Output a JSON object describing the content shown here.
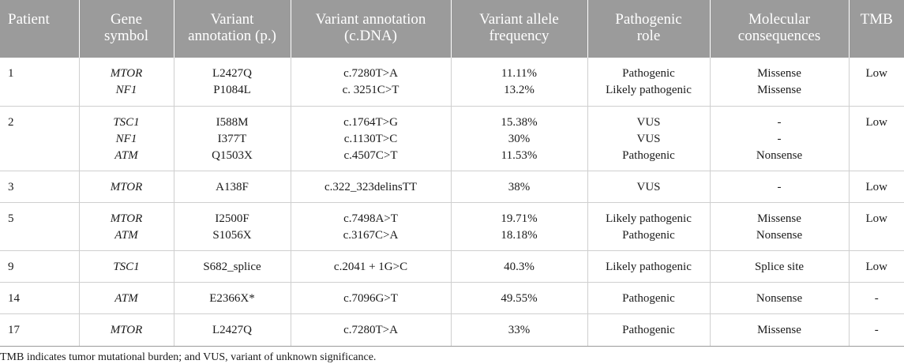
{
  "table": {
    "headers": [
      [
        "Patient"
      ],
      [
        "Gene",
        "symbol"
      ],
      [
        "Variant",
        "annotation (p.)"
      ],
      [
        "Variant annotation",
        "(c.DNA)"
      ],
      [
        "Variant allele",
        "frequency"
      ],
      [
        "Pathogenic",
        "role"
      ],
      [
        "Molecular",
        "consequences"
      ],
      [
        "TMB"
      ]
    ],
    "rows": [
      {
        "patient": "1",
        "genes": [
          "MTOR",
          "NF1"
        ],
        "protein": [
          "L2427Q",
          "P1084L"
        ],
        "cdna": [
          "c.7280T>A",
          "c. 3251C>T"
        ],
        "vaf": [
          "11.11%",
          "13.2%"
        ],
        "role": [
          "Pathogenic",
          "Likely pathogenic"
        ],
        "consequence": [
          "Missense",
          "Missense"
        ],
        "tmb": "Low"
      },
      {
        "patient": "2",
        "genes": [
          "TSC1",
          "NF1",
          "ATM"
        ],
        "protein": [
          "I588M",
          "I377T",
          "Q1503X"
        ],
        "cdna": [
          "c.1764T>G",
          "c.1130T>C",
          "c.4507C>T"
        ],
        "vaf": [
          "15.38%",
          "30%",
          "11.53%"
        ],
        "role": [
          "VUS",
          "VUS",
          "Pathogenic"
        ],
        "consequence": [
          "-",
          "-",
          "Nonsense"
        ],
        "tmb": "Low"
      },
      {
        "patient": "3",
        "genes": [
          "MTOR"
        ],
        "protein": [
          "A138F"
        ],
        "cdna": [
          "c.322_323delinsTT"
        ],
        "vaf": [
          "38%"
        ],
        "role": [
          "VUS"
        ],
        "consequence": [
          "-"
        ],
        "tmb": "Low"
      },
      {
        "patient": "5",
        "genes": [
          "MTOR",
          "ATM"
        ],
        "protein": [
          "I2500F",
          "S1056X"
        ],
        "cdna": [
          "c.7498A>T",
          "c.3167C>A"
        ],
        "vaf": [
          "19.71%",
          "18.18%"
        ],
        "role": [
          "Likely pathogenic",
          "Pathogenic"
        ],
        "consequence": [
          "Missense",
          "Nonsense"
        ],
        "tmb": "Low"
      },
      {
        "patient": "9",
        "genes": [
          "TSC1"
        ],
        "protein": [
          "S682_splice"
        ],
        "cdna": [
          "c.2041 + 1G>C"
        ],
        "vaf": [
          "40.3%"
        ],
        "role": [
          "Likely pathogenic"
        ],
        "consequence": [
          "Splice site"
        ],
        "tmb": "Low"
      },
      {
        "patient": "14",
        "genes": [
          "ATM"
        ],
        "protein": [
          "E2366X*"
        ],
        "cdna": [
          "c.7096G>T"
        ],
        "vaf": [
          "49.55%"
        ],
        "role": [
          "Pathogenic"
        ],
        "consequence": [
          "Nonsense"
        ],
        "tmb": "-"
      },
      {
        "patient": "17",
        "genes": [
          "MTOR"
        ],
        "protein": [
          "L2427Q"
        ],
        "cdna": [
          "c.7280T>A"
        ],
        "vaf": [
          "33%"
        ],
        "role": [
          "Pathogenic"
        ],
        "consequence": [
          "Missense"
        ],
        "tmb": "-"
      }
    ]
  },
  "footnote": "TMB indicates tumor mutational burden; and VUS, variant of unknown significance."
}
